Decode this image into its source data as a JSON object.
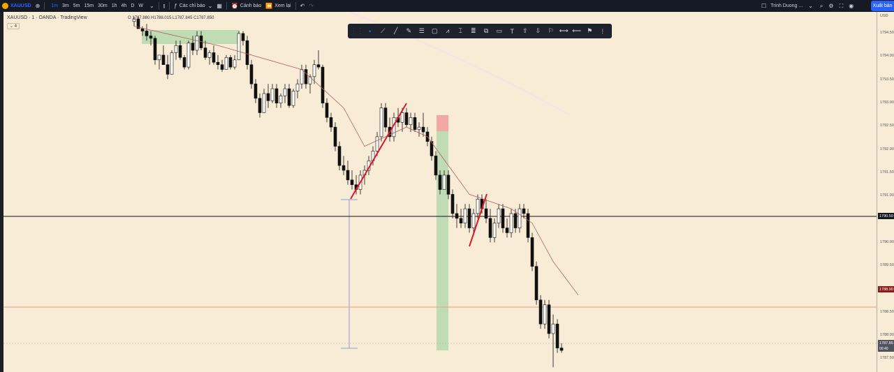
{
  "topbar": {
    "symbol": "XAUUSD",
    "timeframes": [
      "1m",
      "3m",
      "5m",
      "15m",
      "30m",
      "1h",
      "4h",
      "D",
      "W"
    ],
    "active_timeframe": "1m",
    "indicators_label": "Các chỉ báo",
    "alert_label": "Cảnh báo",
    "replay_label": "Xem lại",
    "user_name": "Trinh Duong ...",
    "export_label": "Xuất bản"
  },
  "legend": {
    "title": "XAUUSD · 1 · OANDA · TradingView",
    "ohlc": "O 1787.880 H1788.015 L1787.845 C1787.850",
    "indicator_count": "4"
  },
  "price_axis": {
    "currency": "USD",
    "labels": [
      "1794.500",
      "1794.000",
      "1793.500",
      "1793.000",
      "1792.500",
      "1792.000",
      "1791.500",
      "1791.000",
      "1790.500",
      "1790.000",
      "1789.500",
      "1789.000",
      "1788.500",
      "1788.000",
      "1787.500"
    ],
    "crosshair_price": "1790.50",
    "level_price": "1788.90",
    "current_price": "1787.85",
    "countdown": "00:40"
  },
  "chart_data": {
    "type": "candlestick",
    "ylim": [
      1787.4,
      1794.9
    ],
    "candles": [
      [
        1794.7,
        1794.8,
        1794.6,
        1794.75
      ],
      [
        1794.75,
        1794.8,
        1794.6,
        1794.55
      ],
      [
        1794.55,
        1794.6,
        1794.4,
        1794.5
      ],
      [
        1794.5,
        1794.65,
        1794.3,
        1794.4
      ],
      [
        1794.4,
        1794.5,
        1794.2,
        1794.35
      ],
      [
        1794.35,
        1794.4,
        1793.8,
        1793.9
      ],
      [
        1793.9,
        1794.0,
        1793.7,
        1794.0
      ],
      [
        1794.0,
        1794.2,
        1793.8,
        1793.8
      ],
      [
        1793.8,
        1794.0,
        1793.5,
        1793.6
      ],
      [
        1793.6,
        1794.1,
        1793.6,
        1794.05
      ],
      [
        1794.05,
        1794.3,
        1793.9,
        1794.2
      ],
      [
        1794.2,
        1794.3,
        1793.9,
        1793.95
      ],
      [
        1793.95,
        1794.0,
        1793.7,
        1793.75
      ],
      [
        1793.75,
        1794.3,
        1793.7,
        1794.25
      ],
      [
        1794.25,
        1794.4,
        1794.0,
        1794.1
      ],
      [
        1794.1,
        1794.5,
        1794.0,
        1794.4
      ],
      [
        1794.4,
        1794.5,
        1794.1,
        1794.15
      ],
      [
        1794.15,
        1794.3,
        1793.9,
        1793.95
      ],
      [
        1793.95,
        1794.1,
        1793.8,
        1794.05
      ],
      [
        1794.05,
        1794.2,
        1793.8,
        1793.85
      ],
      [
        1793.85,
        1794.0,
        1793.7,
        1793.8
      ],
      [
        1793.8,
        1793.9,
        1793.65,
        1793.7
      ],
      [
        1793.7,
        1794.0,
        1793.7,
        1793.95
      ],
      [
        1793.95,
        1794.0,
        1793.7,
        1793.75
      ],
      [
        1793.75,
        1794.0,
        1793.7,
        1793.9
      ],
      [
        1793.9,
        1794.5,
        1793.9,
        1794.45
      ],
      [
        1794.45,
        1794.5,
        1794.2,
        1794.3
      ],
      [
        1794.3,
        1794.4,
        1793.7,
        1793.8
      ],
      [
        1793.8,
        1793.9,
        1793.3,
        1793.4
      ],
      [
        1793.4,
        1793.5,
        1793.0,
        1793.1
      ],
      [
        1793.1,
        1793.2,
        1792.7,
        1792.8
      ],
      [
        1792.8,
        1793.3,
        1792.8,
        1793.2
      ],
      [
        1793.2,
        1793.4,
        1792.9,
        1793.05
      ],
      [
        1793.05,
        1793.4,
        1793.0,
        1793.3
      ],
      [
        1793.3,
        1793.4,
        1792.9,
        1793.0
      ],
      [
        1793.0,
        1793.2,
        1792.9,
        1793.15
      ],
      [
        1793.15,
        1793.4,
        1793.0,
        1793.3
      ],
      [
        1793.3,
        1793.4,
        1792.9,
        1792.95
      ],
      [
        1792.95,
        1793.3,
        1792.9,
        1793.25
      ],
      [
        1793.25,
        1793.5,
        1793.1,
        1793.4
      ],
      [
        1793.4,
        1793.8,
        1793.3,
        1793.7
      ],
      [
        1793.7,
        1793.8,
        1793.3,
        1793.4
      ],
      [
        1793.4,
        1793.6,
        1793.2,
        1793.55
      ],
      [
        1793.55,
        1793.9,
        1793.4,
        1793.8
      ],
      [
        1793.8,
        1794.1,
        1793.7,
        1793.75
      ],
      [
        1793.75,
        1793.8,
        1792.9,
        1793.0
      ],
      [
        1793.0,
        1793.1,
        1792.6,
        1792.7
      ],
      [
        1792.7,
        1792.8,
        1792.4,
        1792.5
      ],
      [
        1792.5,
        1792.6,
        1792.0,
        1792.1
      ],
      [
        1792.1,
        1792.2,
        1791.6,
        1791.7
      ],
      [
        1791.7,
        1791.9,
        1791.5,
        1791.6
      ],
      [
        1791.6,
        1791.8,
        1791.3,
        1791.4
      ],
      [
        1791.4,
        1791.6,
        1791.2,
        1791.3
      ],
      [
        1791.3,
        1791.5,
        1791.1,
        1791.2
      ],
      [
        1791.2,
        1791.6,
        1791.1,
        1791.5
      ],
      [
        1791.5,
        1791.7,
        1791.3,
        1791.6
      ],
      [
        1791.6,
        1791.9,
        1791.5,
        1791.8
      ],
      [
        1791.8,
        1792.1,
        1791.7,
        1792.0
      ],
      [
        1792.0,
        1792.4,
        1791.9,
        1792.3
      ],
      [
        1792.3,
        1793.0,
        1792.2,
        1792.9
      ],
      [
        1792.9,
        1793.0,
        1792.4,
        1792.5
      ],
      [
        1792.5,
        1792.7,
        1792.2,
        1792.3
      ],
      [
        1792.3,
        1792.8,
        1792.2,
        1792.7
      ],
      [
        1792.7,
        1792.9,
        1792.5,
        1792.6
      ],
      [
        1792.6,
        1792.9,
        1792.4,
        1792.8
      ],
      [
        1792.8,
        1792.9,
        1792.5,
        1792.55
      ],
      [
        1792.55,
        1792.8,
        1792.4,
        1792.7
      ],
      [
        1792.7,
        1792.8,
        1792.4,
        1792.45
      ],
      [
        1792.45,
        1792.6,
        1792.3,
        1792.5
      ],
      [
        1792.5,
        1792.8,
        1792.3,
        1792.4
      ],
      [
        1792.4,
        1792.5,
        1792.1,
        1792.2
      ],
      [
        1792.2,
        1792.3,
        1791.8,
        1791.9
      ],
      [
        1791.9,
        1792.0,
        1791.4,
        1791.5
      ],
      [
        1791.5,
        1791.6,
        1791.1,
        1791.2
      ],
      [
        1791.2,
        1791.6,
        1791.2,
        1791.5
      ],
      [
        1791.5,
        1791.6,
        1791.0,
        1791.1
      ],
      [
        1791.1,
        1791.2,
        1790.6,
        1790.7
      ],
      [
        1790.7,
        1790.9,
        1790.4,
        1790.6
      ],
      [
        1790.6,
        1790.8,
        1790.4,
        1790.5
      ],
      [
        1790.5,
        1790.9,
        1790.4,
        1790.8
      ],
      [
        1790.8,
        1790.9,
        1790.3,
        1790.4
      ],
      [
        1790.4,
        1790.8,
        1790.3,
        1790.7
      ],
      [
        1790.7,
        1791.1,
        1790.6,
        1791.0
      ],
      [
        1791.0,
        1791.1,
        1790.7,
        1790.8
      ],
      [
        1790.8,
        1791.0,
        1790.5,
        1790.6
      ],
      [
        1790.6,
        1790.8,
        1790.1,
        1790.2
      ],
      [
        1790.2,
        1790.6,
        1790.1,
        1790.5
      ],
      [
        1790.5,
        1790.9,
        1790.4,
        1790.8
      ],
      [
        1790.8,
        1790.9,
        1790.3,
        1790.4
      ],
      [
        1790.4,
        1790.6,
        1790.2,
        1790.3
      ],
      [
        1790.3,
        1790.8,
        1790.2,
        1790.7
      ],
      [
        1790.7,
        1790.8,
        1790.3,
        1790.4
      ],
      [
        1790.4,
        1790.9,
        1790.3,
        1790.8
      ],
      [
        1790.8,
        1790.9,
        1790.6,
        1790.7
      ],
      [
        1790.7,
        1790.8,
        1790.1,
        1790.2
      ],
      [
        1790.2,
        1790.3,
        1789.5,
        1789.6
      ],
      [
        1789.6,
        1789.7,
        1788.8,
        1788.9
      ],
      [
        1788.9,
        1789.0,
        1788.3,
        1788.4
      ],
      [
        1788.4,
        1788.9,
        1788.3,
        1788.8
      ],
      [
        1788.8,
        1788.9,
        1788.1,
        1788.2
      ],
      [
        1788.2,
        1788.6,
        1787.5,
        1788.4
      ],
      [
        1788.4,
        1788.5,
        1787.8,
        1787.9
      ],
      [
        1787.9,
        1788.0,
        1787.8,
        1787.85
      ]
    ],
    "ma_line": [
      [
        0,
        1794.6
      ],
      [
        20,
        1794.2
      ],
      [
        40,
        1793.7
      ],
      [
        50,
        1792.9
      ],
      [
        55,
        1792.1
      ],
      [
        60,
        1792.3
      ],
      [
        65,
        1792.5
      ],
      [
        70,
        1792.3
      ],
      [
        80,
        1791.1
      ],
      [
        90,
        1790.8
      ],
      [
        95,
        1790.5
      ],
      [
        100,
        1789.7
      ],
      [
        106,
        1789.0
      ]
    ],
    "horizontal_lines": [
      1790.55,
      1788.6
    ],
    "dotted_line": 1787.9,
    "annotations": [
      "long-position",
      "short-position",
      "trend-lines",
      "vertical-measure"
    ]
  }
}
